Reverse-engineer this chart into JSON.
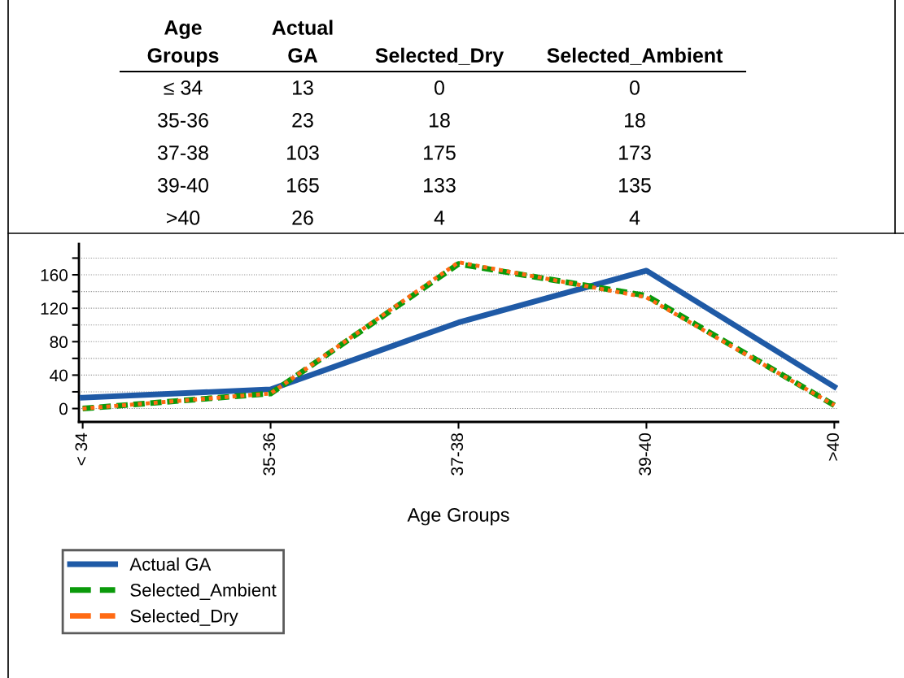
{
  "chart_data": [
    {
      "type": "other",
      "xlabel": "Age Groups",
      "data_labels": true,
      "categories": [
        "≤ 34",
        "35-36",
        "37-38",
        "39-40",
        ">40"
      ],
      "series": [
        {
          "name": "Actual GA",
          "values": [
            13,
            23,
            103,
            165,
            26
          ]
        },
        {
          "name": "Selected_Dry",
          "values": [
            0,
            18,
            175,
            133,
            4
          ]
        },
        {
          "name": "Selected_Ambient",
          "values": [
            0,
            18,
            173,
            135,
            4
          ]
        }
      ]
    },
    {
      "type": "line",
      "xlabel": "Age Groups",
      "categories": [
        "< 34",
        "35-36",
        "37-38",
        "39-40",
        ">40"
      ],
      "series": [
        {
          "name": "Actual GA",
          "color": "#1f5aa6",
          "line_style": "solid",
          "values": [
            13,
            23,
            103,
            165,
            26
          ]
        },
        {
          "name": "Selected_Dry",
          "color": "#ff6a13",
          "line_style": "dotted",
          "values": [
            0,
            18,
            175,
            133,
            4
          ]
        },
        {
          "name": "Selected_Ambient",
          "color": "#0a9a0a",
          "line_style": "dashed",
          "values": [
            0,
            18,
            173,
            135,
            4
          ]
        }
      ],
      "ylim": [
        -16,
        197
      ],
      "yticks": [
        0,
        {
          "value": 20,
          "label": null
        },
        40,
        {
          "value": 60,
          "label": null
        },
        80,
        {
          "value": 100,
          "label": null
        },
        120,
        {
          "value": 140,
          "label": null
        },
        160,
        {
          "value": 180,
          "label": null
        }
      ],
      "grid": "y",
      "legend": "bottom left",
      "marker": "none"
    }
  ]
}
